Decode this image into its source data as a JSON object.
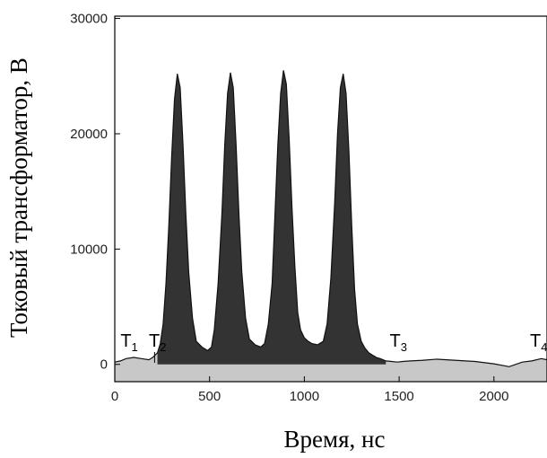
{
  "chart_data": {
    "type": "area",
    "title": "",
    "xlabel": "Время, нс",
    "ylabel": "Токовый трансформатор, В",
    "xlim": [
      0,
      2280
    ],
    "ylim": [
      -1500,
      30200
    ],
    "x_ticks": [
      "0",
      "500",
      "1000",
      "1500",
      "2000"
    ],
    "y_ticks": [
      "0",
      "10000",
      "20000",
      "30000"
    ],
    "grid": false,
    "colors": {
      "pulse_fill": "#333333",
      "baseline_fill": "#c8c8c8",
      "axis": "#000000"
    },
    "series": [
      {
        "x": [
          0,
          30,
          60,
          100,
          140,
          180,
          200,
          225,
          240,
          255,
          270,
          285,
          300,
          315,
          330,
          345,
          360,
          375,
          390,
          410,
          430,
          460,
          490,
          510,
          525,
          545,
          565,
          580,
          595,
          610,
          625,
          640,
          655,
          670,
          690,
          710,
          740,
          770,
          790,
          810,
          830,
          845,
          860,
          875,
          890,
          905,
          920,
          935,
          950,
          965,
          980,
          1000,
          1020,
          1040,
          1070,
          1100,
          1120,
          1140,
          1160,
          1175,
          1190,
          1205,
          1220,
          1235,
          1250,
          1265,
          1280,
          1300,
          1320,
          1340,
          1360,
          1380,
          1400,
          1430,
          1460,
          1490,
          1520,
          1560,
          1620,
          1700,
          1800,
          1900,
          2000,
          2080,
          2150,
          2200,
          2250,
          2280
        ],
        "y": [
          200,
          300,
          500,
          600,
          500,
          400,
          600,
          1000,
          1800,
          3500,
          7000,
          12000,
          18000,
          23000,
          25200,
          24000,
          19000,
          13000,
          8000,
          4000,
          2000,
          1500,
          1200,
          1500,
          3000,
          7000,
          13000,
          19000,
          23500,
          25300,
          24000,
          19000,
          13000,
          8000,
          4000,
          2200,
          1700,
          1500,
          1800,
          3500,
          7000,
          13000,
          19000,
          23500,
          25500,
          24300,
          19500,
          13500,
          8500,
          4500,
          3000,
          2300,
          2000,
          1800,
          1700,
          2000,
          3500,
          7500,
          14000,
          20000,
          24000,
          25200,
          23500,
          18500,
          12000,
          6500,
          3500,
          2000,
          1400,
          1000,
          800,
          600,
          500,
          300,
          250,
          200,
          250,
          300,
          350,
          450,
          350,
          250,
          50,
          -200,
          200,
          300,
          500,
          400
        ]
      }
    ],
    "pulse_range": [
      225,
      1430
    ],
    "markers": [
      {
        "label": "T",
        "sub": "1",
        "x": 30
      },
      {
        "label": "T",
        "sub": "2",
        "x": 180
      },
      {
        "label": "T",
        "sub": "3",
        "x": 1450
      },
      {
        "label": "T",
        "sub": "4",
        "x": 2190
      }
    ]
  }
}
